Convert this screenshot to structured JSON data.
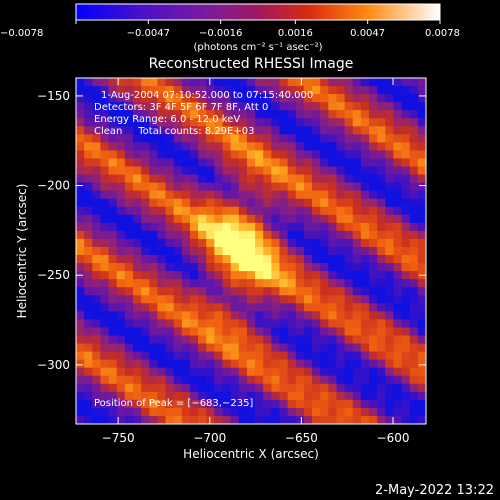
{
  "chart_data": {
    "type": "heatmap",
    "title": "Reconstructed RHESSI Image",
    "xlabel": "Heliocentric X (arcsec)",
    "ylabel": "Heliocentric Y (arcsec)",
    "xlim": [
      -773,
      -582
    ],
    "ylim": [
      -333,
      -140
    ],
    "xticks": [
      -750,
      -700,
      -650,
      -600
    ],
    "yticks": [
      -150,
      -200,
      -250,
      -300
    ],
    "xtick_labels": [
      "−750",
      "−700",
      "−650",
      "−600"
    ],
    "ytick_labels": [
      "−150",
      "−200",
      "−250",
      "−300"
    ],
    "colorbar": {
      "min": -0.0078,
      "max": 0.0078,
      "ticks": [
        -0.0078,
        -0.0047,
        -0.0016,
        0.0016,
        0.0047,
        0.0078
      ],
      "tick_labels": [
        "−0.0078",
        "−0.0047",
        "−0.0016",
        "0.0016",
        "0.0047",
        "0.0078"
      ],
      "unit_label": "(photons cm⁻² s⁻¹ asec⁻²)"
    },
    "annotations": [
      "1-Aug-2004 07:10:52.000 to 07:15:40.000",
      "Detectors: 3F 4F 5F 6F 7F 8F, Att 0",
      "Energy Range: 6.0 - 12.0 keV",
      "Clean     Total counts: 8.29E+03"
    ],
    "peak_label": "Position of Peak = [−683,−235]",
    "peak": [
      -683,
      -235
    ],
    "grid": false,
    "colormap": [
      "#1010e0",
      "#5a14b0",
      "#8a2080",
      "#c83020",
      "#f06010",
      "#ffb020",
      "#ffff80"
    ]
  },
  "footer": {
    "timestamp": "2-May-2022 13:22"
  }
}
